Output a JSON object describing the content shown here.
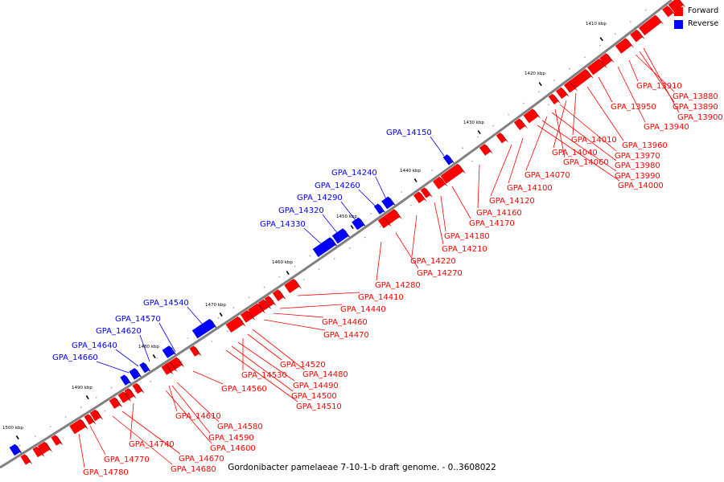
{
  "title": "Gordonibacter pamelaeae 7-10-1-b draft genome. - 0..3608022",
  "legend": [
    {
      "label": "Forward",
      "color": "#ff0000"
    },
    {
      "label": "Reverse",
      "color": "#0000ff"
    }
  ],
  "colors": {
    "forward": "#ff0000",
    "reverse": "#0000ff",
    "backbone": "#808080"
  },
  "ticks": [
    "1410 kbp",
    "1420 kbp",
    "1430 kbp",
    "1440 kbp",
    "1450 kbp",
    "1460 kbp",
    "1470 kbp",
    "1480 kbp",
    "1490 kbp",
    "1500 kbp"
  ],
  "forward_genes": [
    "GPA_13910",
    "GPA_13880",
    "GPA_13890",
    "GPA_13900",
    "GPA_13950",
    "GPA_13940",
    "GPA_14010",
    "GPA_13960",
    "GPA_14040",
    "GPA_13970",
    "GPA_14060",
    "GPA_13980",
    "GPA_14070",
    "GPA_13990",
    "GPA_14000",
    "GPA_14100",
    "GPA_14120",
    "GPA_14160",
    "GPA_14170",
    "GPA_14180",
    "GPA_14210",
    "GPA_14220",
    "GPA_14270",
    "GPA_14280",
    "GPA_14410",
    "GPA_14440",
    "GPA_14460",
    "GPA_14470",
    "GPA_14480",
    "GPA_14520",
    "GPA_14530",
    "GPA_14490",
    "GPA_14500",
    "GPA_14510",
    "GPA_14560",
    "GPA_14610",
    "GPA_14580",
    "GPA_14590",
    "GPA_14600",
    "GPA_14740",
    "GPA_14670",
    "GPA_14770",
    "GPA_14680",
    "GPA_14780"
  ],
  "reverse_genes": [
    "GPA_14150",
    "GPA_14240",
    "GPA_14260",
    "GPA_14290",
    "GPA_14320",
    "GPA_14330",
    "GPA_14540",
    "GPA_14570",
    "GPA_14620",
    "GPA_14640",
    "GPA_14660"
  ]
}
